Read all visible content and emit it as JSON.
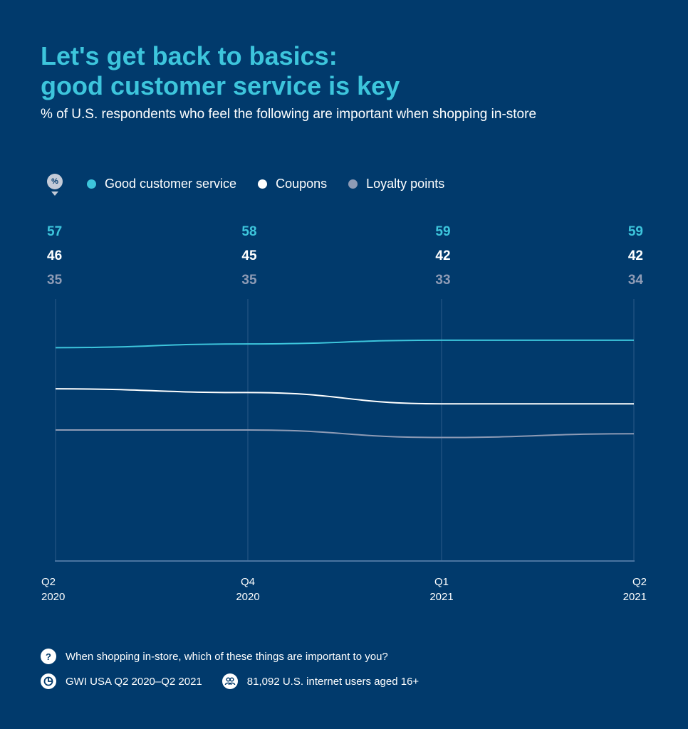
{
  "title_line1": "Let's get back to basics:",
  "title_line2": "good customer service is key",
  "subtitle": "% of U.S. respondents who feel the following are important when shopping in-store",
  "legend_badge": "%",
  "colors": {
    "background": "#013a6c",
    "good_customer_service": "#3dc5dc",
    "coupons": "#ffffff",
    "loyalty_points": "#8e9bb5"
  },
  "chart_data": {
    "type": "line",
    "title": "Let's get back to basics: good customer service is key",
    "subtitle": "% of U.S. respondents who feel the following are important when shopping in-store",
    "categories": [
      {
        "quarter": "Q2",
        "year": "2020"
      },
      {
        "quarter": "Q4",
        "year": "2020"
      },
      {
        "quarter": "Q1",
        "year": "2021"
      },
      {
        "quarter": "Q2",
        "year": "2021"
      }
    ],
    "series": [
      {
        "name": "Good customer service",
        "color": "#3dc5dc",
        "values": [
          57,
          58,
          59,
          59
        ]
      },
      {
        "name": "Coupons",
        "color": "#ffffff",
        "values": [
          46,
          45,
          42,
          42
        ]
      },
      {
        "name": "Loyalty points",
        "color": "#8e9bb5",
        "values": [
          35,
          35,
          33,
          34
        ]
      }
    ],
    "ylim": [
      0,
      70
    ],
    "legend": "top-left",
    "grid": "vertical"
  },
  "footer": {
    "question_icon": "?",
    "question": "When shopping in-store, which of these things are important to you?",
    "source_icon": "chart-icon",
    "source": "GWI USA Q2 2020–Q2 2021",
    "sample_icon": "people-icon",
    "sample": "81,092 U.S. internet users aged 16+"
  }
}
